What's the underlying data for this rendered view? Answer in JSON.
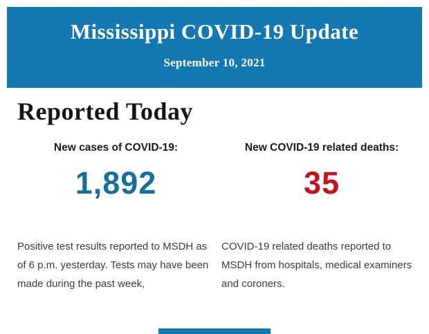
{
  "header": {
    "title": "Mississippi COVID-19 Update",
    "date": "September 10, 2021",
    "background_color": "#1478b3",
    "text_color": "#ffffff"
  },
  "main": {
    "section_title": "Reported Today",
    "stats": [
      {
        "label": "New cases of COVID-19:",
        "value": "1,892",
        "value_color": "#176f9e",
        "description": "Positive test results reported to MSDH as of 6 p.m. yesterday. Tests may have been made during the past week,"
      },
      {
        "label": "New COVID-19 related deaths:",
        "value": "35",
        "value_color": "#c5121d",
        "description": "COVID-19 related deaths reported to MSDH from hospitals, medical examiners and coroners."
      }
    ]
  },
  "footer": {
    "bar_color": "#1478b3"
  }
}
